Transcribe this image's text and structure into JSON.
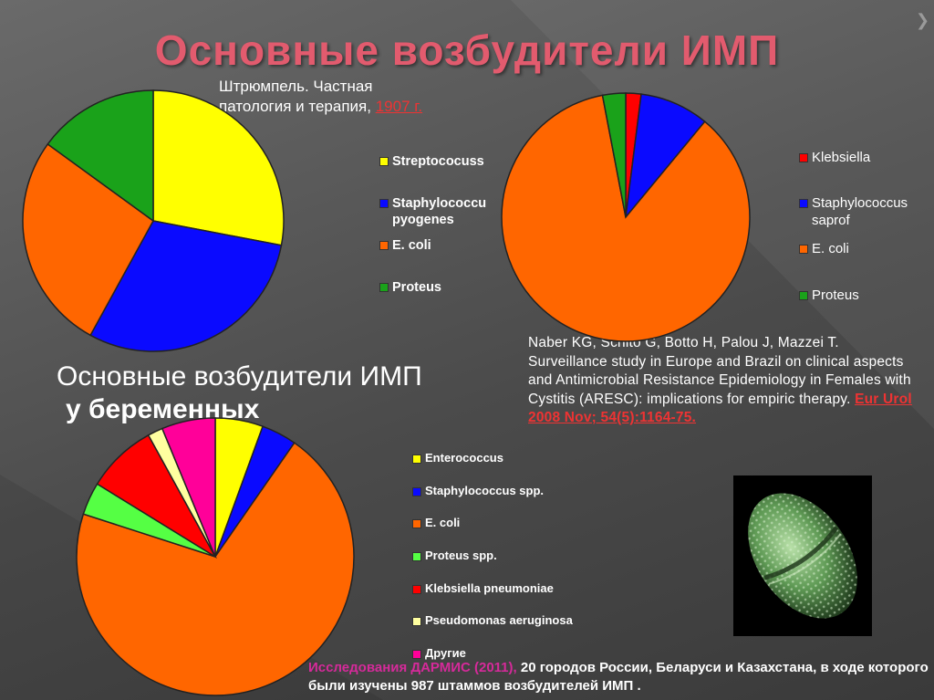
{
  "title": "Основные возбудители ИМП",
  "source1": {
    "line1": "Штрюмпель. Частная",
    "line2_text": "патология и  терапия,",
    "line2_link": "1907 г."
  },
  "subtitle": {
    "line1": "Основные возбудители ИМП",
    "line2": "у беременных"
  },
  "reference": {
    "text": "Naber KG, Schito G, Botto H, Palou J, Mazzei T. Surveillance study in Europe and Brazil on clinical aspects and Antimicrobial Resistance Epidemiology in Females with Cystitis (ARESC): implications for empiric therapy.",
    "link": "Eur Urol 2008 Nov; 54(5):1164-75."
  },
  "footnote": {
    "highlight": "Исследования ДАРМИС (2011),",
    "text": " 20 городов России, Беларуси и Казахстана, в ходе которого были изучены 987 штаммов возбудителей ИМП ."
  },
  "photo": {
    "icon": "bacterium-micrograph"
  },
  "chart_data": [
    {
      "type": "pie",
      "categories": [
        "Streptococuss",
        "Staphylococcus pyogenes",
        "E. coli",
        "Proteus"
      ],
      "values": [
        28,
        30,
        27,
        15
      ],
      "colors": [
        "#ffff00",
        "#0a0aff",
        "#ff6600",
        "#1aa21a"
      ],
      "legend_labels": [
        "Streptococuss",
        "Staphylococcu",
        "E. coli",
        "Proteus"
      ],
      "legend_second_line": [
        "",
        "pyogenes",
        "",
        ""
      ]
    },
    {
      "type": "pie",
      "categories": [
        "Klebsiella",
        "Staphylococcus saprof",
        "E. coli",
        "Proteus"
      ],
      "values": [
        2,
        9,
        86,
        3
      ],
      "colors": [
        "#ff0000",
        "#0a0aff",
        "#ff6600",
        "#1aa21a"
      ],
      "legend_labels": [
        "Klebsiella",
        "Staphylococcus",
        "E. coli",
        "Proteus"
      ],
      "legend_second_line": [
        "",
        "saprof",
        "",
        ""
      ]
    },
    {
      "type": "pie",
      "categories": [
        "Enterococcus",
        "Staphylococcus spp.",
        "E. coli",
        "Proteus spp.",
        "Klebsiella pneumoniae",
        "Pseudomonas aeruginosa",
        "Другие"
      ],
      "values": [
        5.7,
        4.2,
        72,
        3.9,
        8.4,
        1.8,
        6.4
      ],
      "colors": [
        "#ffff00",
        "#0a0aff",
        "#ff6600",
        "#55ff44",
        "#ff0000",
        "#ffffa0",
        "#ff0099"
      ],
      "legend_labels": [
        "Enterococcus",
        "Staphylococcus spp.",
        "E. coli",
        "Proteus spp.",
        "Klebsiella pneumoniae",
        "Pseudomonas aeruginosa",
        "Другие"
      ]
    }
  ]
}
